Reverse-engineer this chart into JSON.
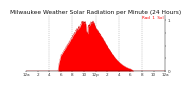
{
  "title": "Milwaukee Weather Solar Radiation per Minute (24 Hours)",
  "bg_color": "#ffffff",
  "fill_color": "#ff0000",
  "line_color": "#cc0000",
  "grid_color": "#999999",
  "n_points": 1440,
  "peak_value": 1.0,
  "ylim": [
    0,
    1.1
  ],
  "xlim": [
    0,
    1440
  ],
  "xtick_positions": [
    0,
    120,
    240,
    360,
    480,
    600,
    720,
    840,
    960,
    1080,
    1200,
    1320,
    1440
  ],
  "xtick_labels": [
    "12a",
    "2",
    "4",
    "6",
    "8",
    "10",
    "12p",
    "2",
    "4",
    "6",
    "8",
    "10",
    "12a"
  ],
  "ytick_positions": [
    0.0,
    0.25,
    0.5,
    0.75,
    1.0
  ],
  "ytick_labels": [
    "0",
    "",
    "",
    "",
    "1"
  ],
  "vgrid_positions": [
    240,
    480,
    720,
    960,
    1200
  ],
  "title_fontsize": 4.2,
  "tick_fontsize": 3.0,
  "legend_text": "Rad  1  Sol",
  "legend_color": "#ff0000",
  "sunrise": 330,
  "sunset": 1110,
  "peak1": 600,
  "peak2": 660
}
